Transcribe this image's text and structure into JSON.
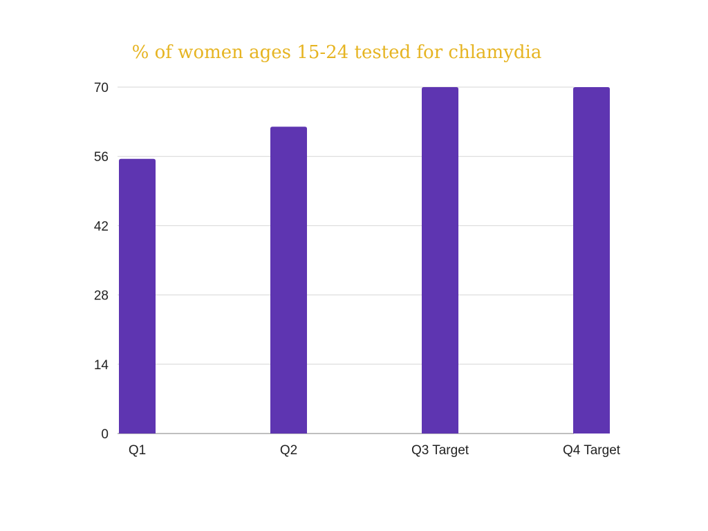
{
  "chart_data": {
    "type": "bar",
    "title": "% of women ages 15-24 tested for chlamydia",
    "categories": [
      "Q1",
      "Q2",
      "Q3 Target",
      "Q4 Target"
    ],
    "values": [
      55.5,
      62,
      70,
      70
    ],
    "ylim": [
      0,
      70
    ],
    "yticks": [
      0,
      14,
      28,
      42,
      56,
      70
    ],
    "xlabel": "",
    "ylabel": "",
    "grid": true,
    "legend": "none"
  },
  "colors": {
    "bar": "#5e35b1",
    "title": "#e6b422",
    "grid": "#d6d6d6",
    "axis": "#999999"
  }
}
